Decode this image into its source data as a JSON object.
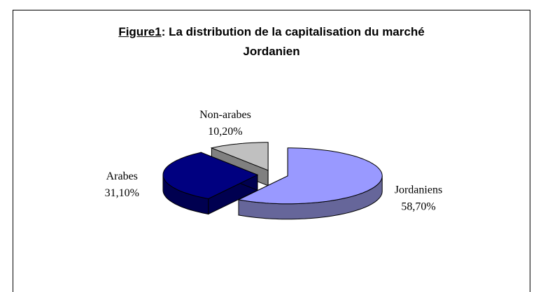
{
  "chart_data": {
    "type": "pie3d",
    "title_label": "Figure1",
    "title": ": La distribution de la capitalisation du marché Jordanien",
    "categories": [
      "Jordaniens",
      "Arabes",
      "Non-arabes"
    ],
    "values": [
      58.7,
      31.1,
      10.2
    ],
    "value_labels": [
      "58,70%",
      "31,10%",
      "10,20%"
    ],
    "colors": [
      "#9999ff",
      "#000080",
      "#c0c0c0"
    ],
    "side_colors": [
      "#66669a",
      "#000050",
      "#808080"
    ]
  }
}
